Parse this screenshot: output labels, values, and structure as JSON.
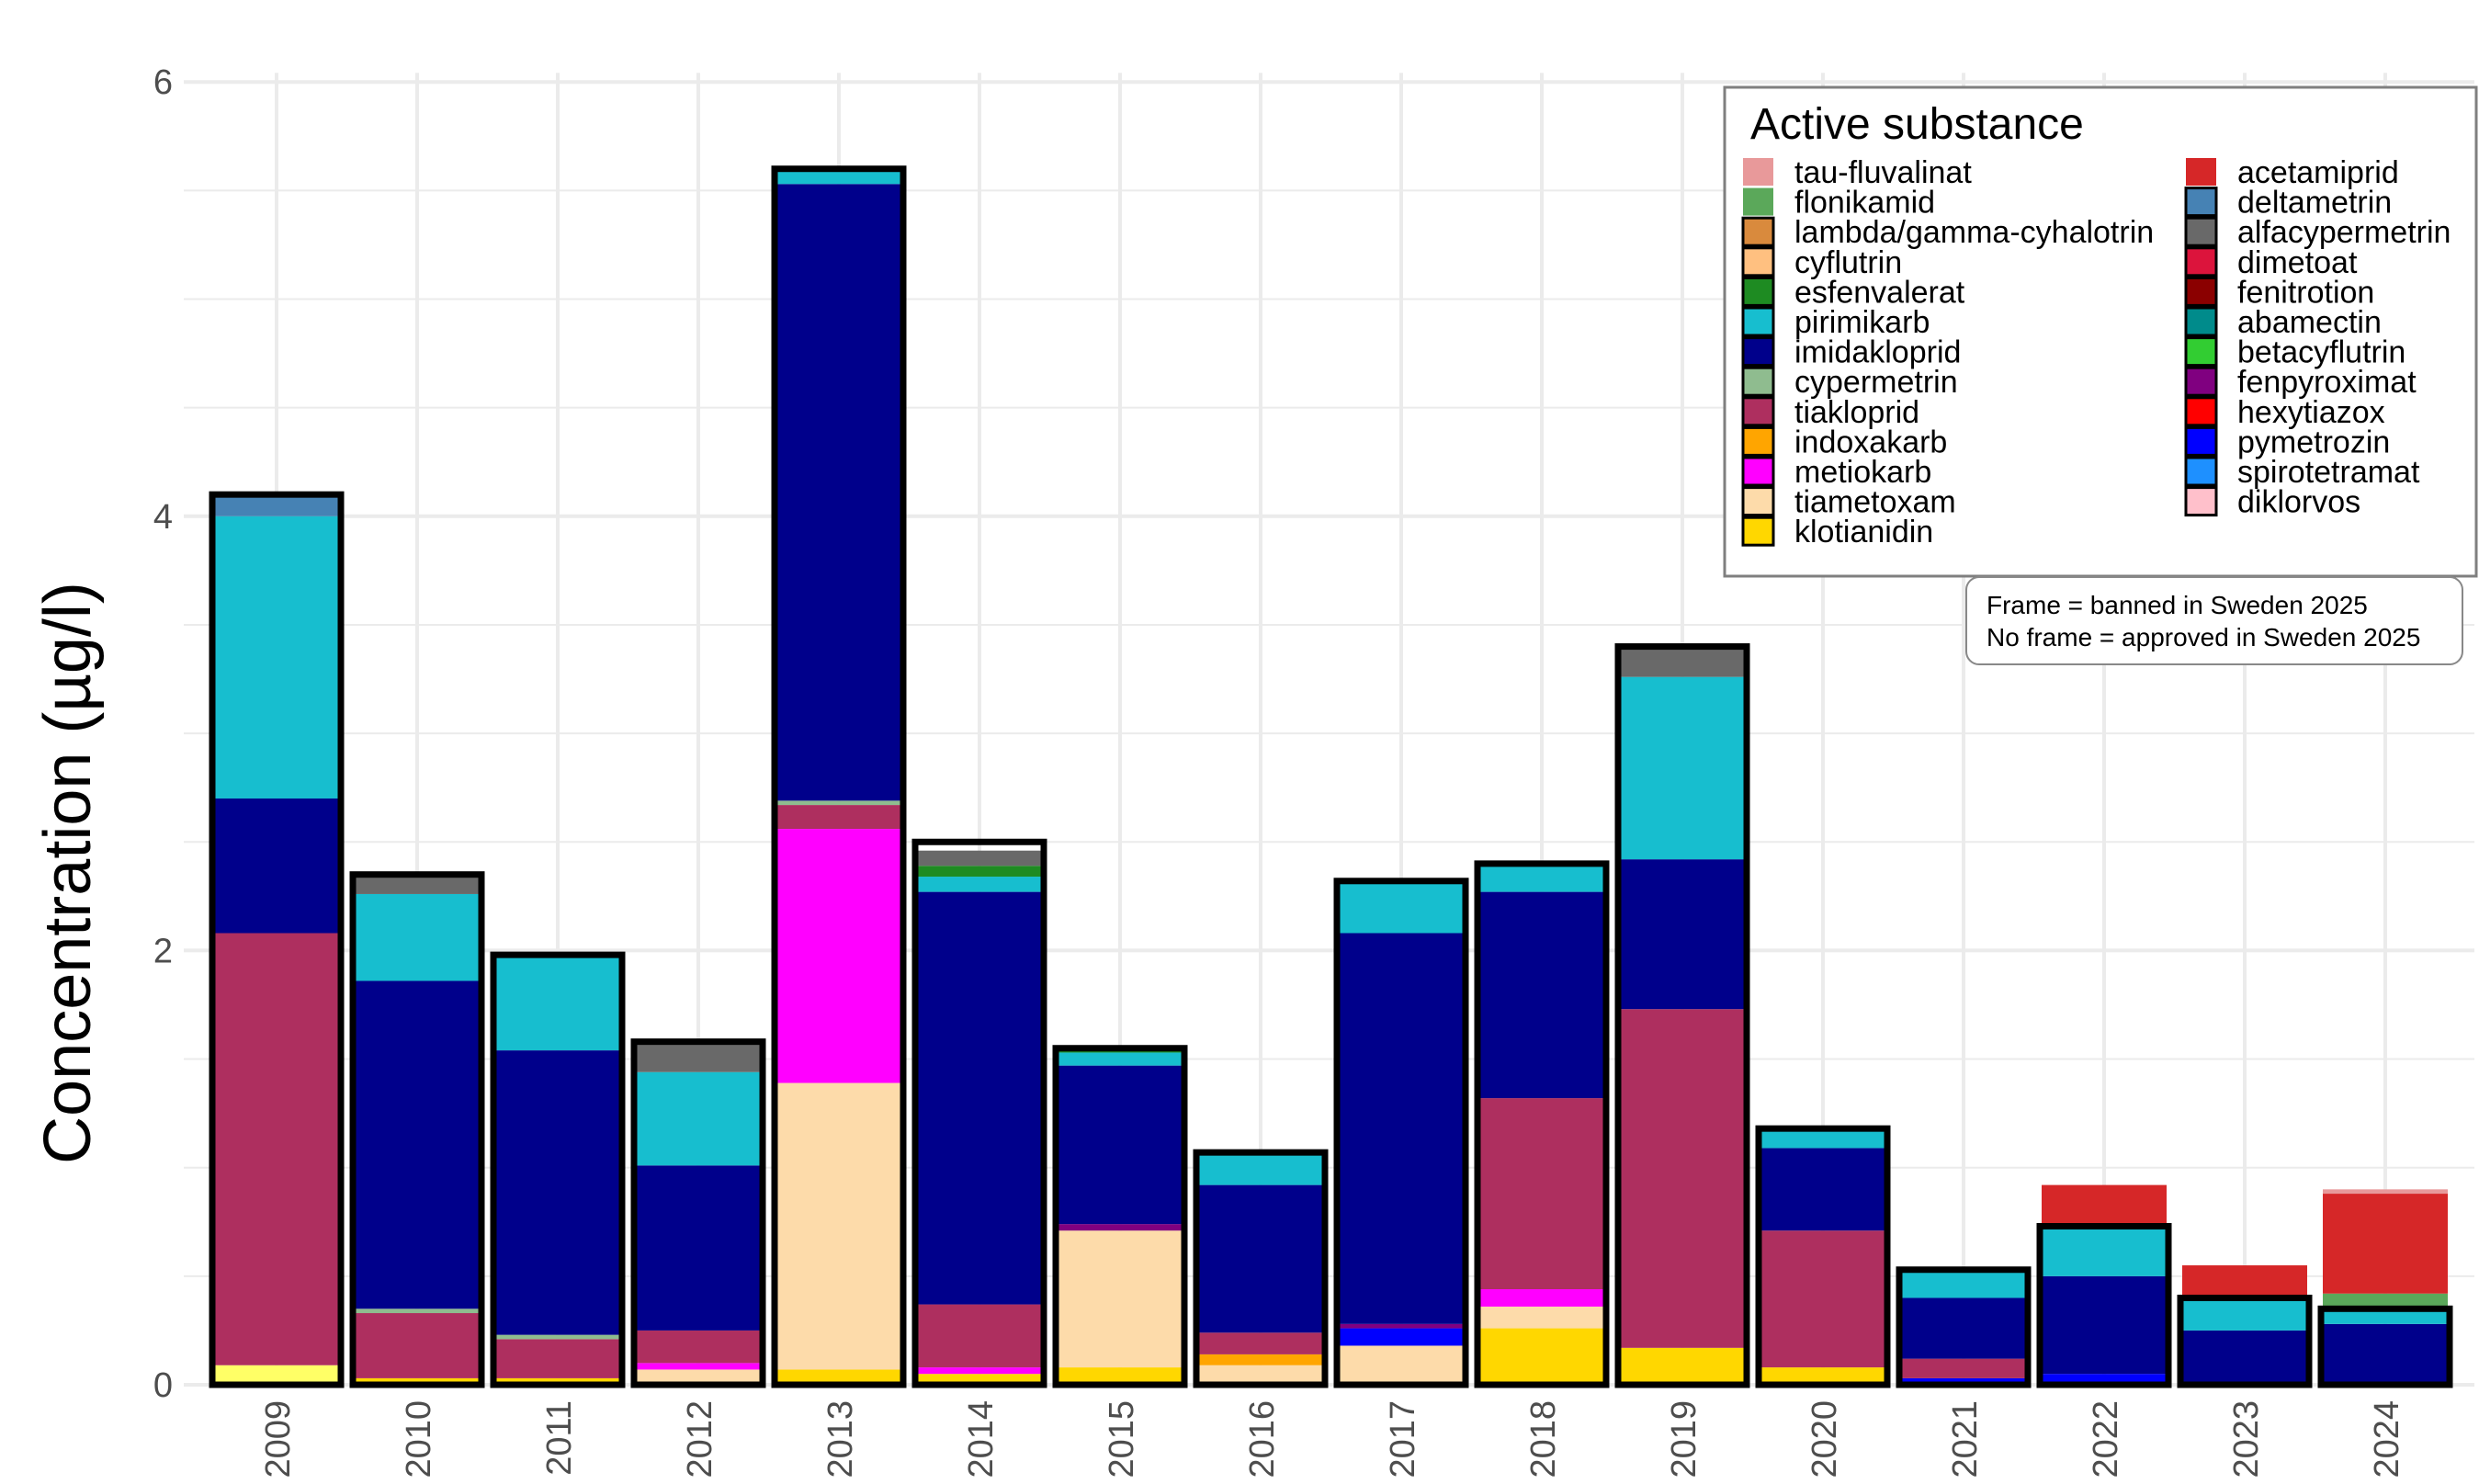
{
  "chart_data": {
    "type": "bar",
    "stacked": true,
    "ylabel": "Concentration (µg/l)",
    "xlabel": "",
    "ylim": [
      0,
      6
    ],
    "y_ticks": [
      "0",
      "2",
      "4",
      "6"
    ],
    "grid": true,
    "categories": [
      "2009",
      "2010",
      "2011",
      "2012",
      "2013",
      "2014",
      "2015",
      "2016",
      "2017",
      "2018",
      "2019",
      "2020",
      "2021",
      "2022",
      "2023",
      "2024"
    ],
    "banned_frame_value": [
      4.1,
      2.35,
      1.98,
      1.58,
      5.6,
      2.5,
      1.55,
      1.07,
      2.32,
      2.4,
      3.4,
      1.18,
      0.53,
      0.73,
      0.4,
      0.35
    ],
    "legend": {
      "title": "Active substance",
      "placement": "top-right",
      "note_lines": [
        "Frame = banned in Sweden 2025",
        "No frame = approved in Sweden 2025"
      ]
    },
    "substances": [
      {
        "name": "tau-fluvalinat",
        "color": "#E8999A",
        "banned": false
      },
      {
        "name": "flonikamid",
        "color": "#5BA85A",
        "banned": false
      },
      {
        "name": "lambda/gamma-cyhalotrin",
        "color": "#D98A3D",
        "banned": true
      },
      {
        "name": "cyflutrin",
        "color": "#FFC080",
        "banned": true
      },
      {
        "name": "esfenvalerat",
        "color": "#1E8B22",
        "banned": true
      },
      {
        "name": "pirimikarb",
        "color": "#17BECF",
        "banned": true
      },
      {
        "name": "imidakloprid",
        "color": "#00008B",
        "banned": true
      },
      {
        "name": "cypermetrin",
        "color": "#8FBC8F",
        "banned": true
      },
      {
        "name": "tiakloprid",
        "color": "#AE2F5F",
        "banned": true
      },
      {
        "name": "indoxakarb",
        "color": "#FFA500",
        "banned": true
      },
      {
        "name": "metiokarb",
        "color": "#FF00FF",
        "banned": true
      },
      {
        "name": "tiametoxam",
        "color": "#FDDBAA",
        "banned": true
      },
      {
        "name": "klotianidin",
        "color": "#FFD700",
        "banned": true
      },
      {
        "name": "acetamiprid",
        "color": "#D62728",
        "banned": false
      },
      {
        "name": "deltametrin",
        "color": "#4682B4",
        "banned": true
      },
      {
        "name": "alfacypermetrin",
        "color": "#696969",
        "banned": true
      },
      {
        "name": "dimetoat",
        "color": "#DC143C",
        "banned": true
      },
      {
        "name": "fenitrotion",
        "color": "#8B0000",
        "banned": true
      },
      {
        "name": "abamectin",
        "color": "#008B8B",
        "banned": true
      },
      {
        "name": "betacyflutrin",
        "color": "#32CD32",
        "banned": true
      },
      {
        "name": "fenpyroximat",
        "color": "#800080",
        "banned": true
      },
      {
        "name": "hexytiazox",
        "color": "#FF0000",
        "banned": true
      },
      {
        "name": "pymetrozin",
        "color": "#0000FF",
        "banned": true
      },
      {
        "name": "spirotetramat",
        "color": "#1E90FF",
        "banned": true
      },
      {
        "name": "diklorvos",
        "color": "#FFC0CB",
        "banned": true
      }
    ],
    "extra_colors": {
      "yellow": "#FFFF66"
    },
    "stacks": [
      [
        {
          "s": "yellow",
          "v": 0.09
        },
        {
          "s": "tiakloprid",
          "v": 1.99
        },
        {
          "s": "imidakloprid",
          "v": 0.62
        },
        {
          "s": "pirimikarb",
          "v": 1.3
        },
        {
          "s": "deltametrin",
          "v": 0.1
        }
      ],
      [
        {
          "s": "klotianidin",
          "v": 0.03
        },
        {
          "s": "tiakloprid",
          "v": 0.3
        },
        {
          "s": "cypermetrin",
          "v": 0.02
        },
        {
          "s": "imidakloprid",
          "v": 1.51
        },
        {
          "s": "pirimikarb",
          "v": 0.4
        },
        {
          "s": "alfacypermetrin",
          "v": 0.09
        }
      ],
      [
        {
          "s": "klotianidin",
          "v": 0.03
        },
        {
          "s": "tiakloprid",
          "v": 0.18
        },
        {
          "s": "cypermetrin",
          "v": 0.02
        },
        {
          "s": "imidakloprid",
          "v": 1.31
        },
        {
          "s": "pirimikarb",
          "v": 0.44
        }
      ],
      [
        {
          "s": "tiametoxam",
          "v": 0.07
        },
        {
          "s": "metiokarb",
          "v": 0.03
        },
        {
          "s": "tiakloprid",
          "v": 0.15
        },
        {
          "s": "imidakloprid",
          "v": 0.76
        },
        {
          "s": "pirimikarb",
          "v": 0.43
        },
        {
          "s": "alfacypermetrin",
          "v": 0.14
        }
      ],
      [
        {
          "s": "klotianidin",
          "v": 0.07
        },
        {
          "s": "tiametoxam",
          "v": 1.32
        },
        {
          "s": "metiokarb",
          "v": 1.17
        },
        {
          "s": "tiakloprid",
          "v": 0.11
        },
        {
          "s": "cypermetrin",
          "v": 0.02
        },
        {
          "s": "imidakloprid",
          "v": 2.84
        },
        {
          "s": "pirimikarb",
          "v": 0.07
        }
      ],
      [
        {
          "s": "klotianidin",
          "v": 0.05
        },
        {
          "s": "metiokarb",
          "v": 0.03
        },
        {
          "s": "tiakloprid",
          "v": 0.29
        },
        {
          "s": "imidakloprid",
          "v": 1.9
        },
        {
          "s": "pirimikarb",
          "v": 0.07
        },
        {
          "s": "esfenvalerat",
          "v": 0.05
        },
        {
          "s": "alfacypermetrin",
          "v": 0.07
        }
      ],
      [
        {
          "s": "klotianidin",
          "v": 0.08
        },
        {
          "s": "tiametoxam",
          "v": 0.63
        },
        {
          "s": "fenpyroximat",
          "v": 0.03
        },
        {
          "s": "imidakloprid",
          "v": 0.73
        },
        {
          "s": "pirimikarb",
          "v": 0.06
        },
        {
          "s": "esfenvalerat",
          "v": 0.02
        }
      ],
      [
        {
          "s": "tiametoxam",
          "v": 0.09
        },
        {
          "s": "indoxakarb",
          "v": 0.05
        },
        {
          "s": "tiakloprid",
          "v": 0.1
        },
        {
          "s": "imidakloprid",
          "v": 0.68
        },
        {
          "s": "pirimikarb",
          "v": 0.14
        }
      ],
      [
        {
          "s": "tiametoxam",
          "v": 0.18
        },
        {
          "s": "pymetrozin",
          "v": 0.08
        },
        {
          "s": "fenpyroximat",
          "v": 0.02
        },
        {
          "s": "imidakloprid",
          "v": 1.8
        },
        {
          "s": "pirimikarb",
          "v": 0.24
        }
      ],
      [
        {
          "s": "klotianidin",
          "v": 0.26
        },
        {
          "s": "tiametoxam",
          "v": 0.1
        },
        {
          "s": "metiokarb",
          "v": 0.08
        },
        {
          "s": "tiakloprid",
          "v": 0.88
        },
        {
          "s": "imidakloprid",
          "v": 0.95
        },
        {
          "s": "pirimikarb",
          "v": 0.13
        }
      ],
      [
        {
          "s": "klotianidin",
          "v": 0.17
        },
        {
          "s": "tiakloprid",
          "v": 1.56
        },
        {
          "s": "imidakloprid",
          "v": 0.69
        },
        {
          "s": "pirimikarb",
          "v": 0.84
        },
        {
          "s": "alfacypermetrin",
          "v": 0.14
        }
      ],
      [
        {
          "s": "klotianidin",
          "v": 0.08
        },
        {
          "s": "tiakloprid",
          "v": 0.63
        },
        {
          "s": "imidakloprid",
          "v": 0.38
        },
        {
          "s": "pirimikarb",
          "v": 0.09
        }
      ],
      [
        {
          "s": "pymetrozin",
          "v": 0.03
        },
        {
          "s": "tiakloprid",
          "v": 0.09
        },
        {
          "s": "imidakloprid",
          "v": 0.28
        },
        {
          "s": "pirimikarb",
          "v": 0.13
        }
      ],
      [
        {
          "s": "pymetrozin",
          "v": 0.05
        },
        {
          "s": "imidakloprid",
          "v": 0.45
        },
        {
          "s": "pirimikarb",
          "v": 0.23
        },
        {
          "s": "acetamiprid",
          "v": 0.19
        }
      ],
      [
        {
          "s": "imidakloprid",
          "v": 0.25
        },
        {
          "s": "pirimikarb",
          "v": 0.15
        },
        {
          "s": "acetamiprid",
          "v": 0.15
        }
      ],
      [
        {
          "s": "fenpyroximat",
          "v": 0.01
        },
        {
          "s": "imidakloprid",
          "v": 0.27
        },
        {
          "s": "pirimikarb",
          "v": 0.07
        },
        {
          "s": "flonikamid",
          "v": 0.07
        },
        {
          "s": "acetamiprid",
          "v": 0.46
        },
        {
          "s": "tau-fluvalinat",
          "v": 0.02
        }
      ]
    ]
  }
}
